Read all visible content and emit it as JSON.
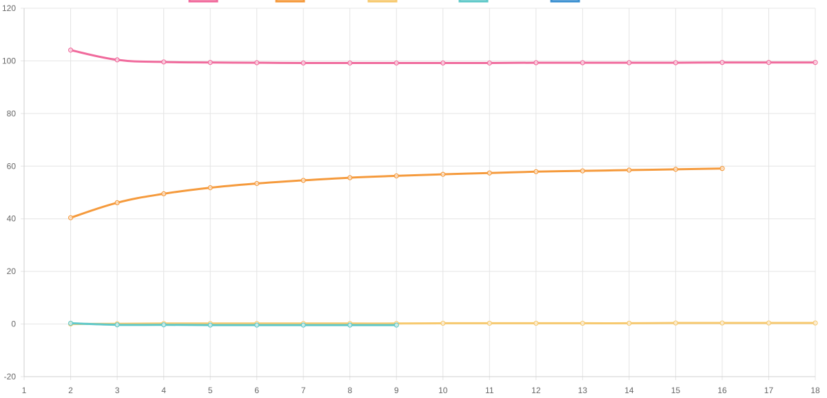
{
  "chart_data": {
    "type": "line",
    "grid": true,
    "legend_position": "top",
    "xlim": [
      1,
      18
    ],
    "ylim": [
      -20,
      120
    ],
    "x_ticks": [
      1,
      2,
      3,
      4,
      5,
      6,
      7,
      8,
      9,
      10,
      11,
      12,
      13,
      14,
      15,
      16,
      17,
      18
    ],
    "y_ticks": [
      -20,
      0,
      20,
      40,
      60,
      80,
      100,
      120
    ],
    "series": [
      {
        "color": "#f06a9c",
        "x": [
          2,
          3,
          4,
          5,
          6,
          7,
          8,
          9,
          10,
          11,
          12,
          13,
          14,
          15,
          16,
          17,
          18
        ],
        "y": [
          104.1,
          100.4,
          99.6,
          99.4,
          99.3,
          99.2,
          99.2,
          99.2,
          99.2,
          99.2,
          99.3,
          99.3,
          99.3,
          99.3,
          99.4,
          99.4,
          99.4
        ]
      },
      {
        "color": "#f59a3c",
        "x": [
          2,
          3,
          4,
          5,
          6,
          7,
          8,
          9,
          10,
          11,
          12,
          13,
          14,
          15,
          16
        ],
        "y": [
          40.4,
          46.1,
          49.5,
          51.8,
          53.4,
          54.6,
          55.6,
          56.3,
          56.9,
          57.4,
          57.9,
          58.2,
          58.5,
          58.8,
          59.1
        ]
      },
      {
        "color": "#f7c96e",
        "x": [
          2,
          3,
          4,
          5,
          6,
          7,
          8,
          9,
          10,
          11,
          12,
          13,
          14,
          15,
          16,
          17,
          18
        ],
        "y": [
          0.0,
          0.1,
          0.2,
          0.2,
          0.2,
          0.2,
          0.2,
          0.2,
          0.3,
          0.3,
          0.3,
          0.3,
          0.3,
          0.4,
          0.4,
          0.4,
          0.4
        ]
      },
      {
        "color": "#5ec8c8",
        "x": [
          2,
          3,
          4,
          5,
          6,
          7,
          8,
          9
        ],
        "y": [
          0.3,
          -0.3,
          -0.3,
          -0.4,
          -0.4,
          -0.4,
          -0.4,
          -0.4
        ]
      },
      {
        "color": "#3a8fd0",
        "x": [],
        "y": []
      }
    ]
  }
}
